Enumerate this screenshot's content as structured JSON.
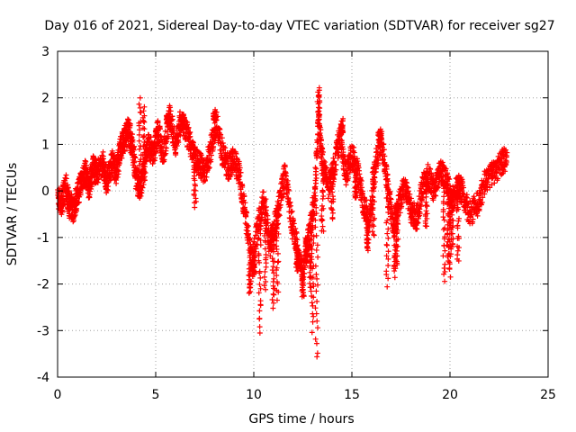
{
  "chart_data": {
    "type": "scatter",
    "title": "Day 016 of 2021, Sidereal Day-to-day VTEC variation (SDTVAR) for receiver sg27",
    "xlabel": "GPS time / hours",
    "ylabel": "SDTVAR / TECUs",
    "xlim": [
      0,
      25
    ],
    "ylim": [
      -4,
      3
    ],
    "xticks": [
      0,
      5,
      10,
      15,
      20,
      25
    ],
    "yticks": [
      -4,
      -3,
      -2,
      -1,
      0,
      1,
      2,
      3
    ],
    "xtick_labels": [
      "0",
      "5",
      "10",
      "15",
      "20",
      "25"
    ],
    "ytick_labels": [
      "-4",
      "-3",
      "-2",
      "-1",
      "0",
      "1",
      "2",
      "3"
    ],
    "grid": true,
    "marker": "+",
    "marker_color": "#ff0000",
    "trace": [
      [
        0.0,
        -0.1
      ],
      [
        0.2,
        -0.3
      ],
      [
        0.4,
        0.1
      ],
      [
        0.6,
        -0.3
      ],
      [
        0.8,
        -0.4
      ],
      [
        1.0,
        -0.1
      ],
      [
        1.2,
        0.2
      ],
      [
        1.4,
        0.4
      ],
      [
        1.6,
        0.1
      ],
      [
        1.8,
        0.5
      ],
      [
        2.0,
        0.4
      ],
      [
        2.3,
        0.6
      ],
      [
        2.5,
        0.2
      ],
      [
        2.8,
        0.6
      ],
      [
        3.0,
        0.4
      ],
      [
        3.2,
        0.9
      ],
      [
        3.4,
        1.1
      ],
      [
        3.6,
        1.3
      ],
      [
        3.8,
        1.0
      ],
      [
        4.0,
        0.3
      ],
      [
        4.2,
        0.0
      ],
      [
        4.4,
        0.4
      ],
      [
        4.6,
        1.0
      ],
      [
        4.9,
        0.8
      ],
      [
        5.1,
        1.3
      ],
      [
        5.4,
        0.8
      ],
      [
        5.7,
        1.6
      ],
      [
        6.0,
        1.0
      ],
      [
        6.3,
        1.5
      ],
      [
        6.6,
        1.2
      ],
      [
        6.9,
        0.8
      ],
      [
        7.2,
        0.6
      ],
      [
        7.5,
        0.4
      ],
      [
        7.8,
        0.9
      ],
      [
        8.1,
        1.5
      ],
      [
        8.4,
        0.8
      ],
      [
        8.7,
        0.5
      ],
      [
        9.0,
        0.7
      ],
      [
        9.3,
        0.3
      ],
      [
        9.6,
        -0.6
      ],
      [
        9.9,
        -1.5
      ],
      [
        10.2,
        -0.8
      ],
      [
        10.5,
        -0.2
      ],
      [
        10.8,
        -1.2
      ],
      [
        11.0,
        -0.9
      ],
      [
        11.3,
        -0.3
      ],
      [
        11.6,
        0.4
      ],
      [
        11.9,
        -0.6
      ],
      [
        12.2,
        -1.2
      ],
      [
        12.5,
        -1.8
      ],
      [
        12.8,
        -1.0
      ],
      [
        13.1,
        -0.2
      ],
      [
        13.3,
        1.5
      ],
      [
        13.5,
        0.6
      ],
      [
        13.8,
        0.1
      ],
      [
        14.1,
        0.5
      ],
      [
        14.4,
        1.2
      ],
      [
        14.7,
        0.3
      ],
      [
        15.0,
        0.8
      ],
      [
        15.3,
        0.4
      ],
      [
        15.6,
        -0.3
      ],
      [
        15.9,
        -0.7
      ],
      [
        16.2,
        0.6
      ],
      [
        16.5,
        1.1
      ],
      [
        16.8,
        0.2
      ],
      [
        17.1,
        -0.8
      ],
      [
        17.4,
        -0.3
      ],
      [
        17.7,
        0.1
      ],
      [
        18.0,
        -0.4
      ],
      [
        18.3,
        -0.6
      ],
      [
        18.6,
        0.1
      ],
      [
        18.9,
        0.3
      ],
      [
        19.2,
        0.0
      ],
      [
        19.5,
        0.5
      ],
      [
        19.8,
        0.2
      ],
      [
        20.1,
        -0.2
      ],
      [
        20.4,
        0.1
      ],
      [
        20.6,
        0.0
      ],
      [
        21.0,
        -0.5
      ],
      [
        21.4,
        -0.3
      ],
      [
        21.8,
        0.2
      ],
      [
        22.2,
        0.4
      ],
      [
        22.6,
        0.6
      ],
      [
        22.9,
        0.7
      ]
    ],
    "bursts": [
      [
        4.2,
        2.0
      ],
      [
        4.4,
        1.8
      ],
      [
        5.6,
        1.5
      ],
      [
        6.4,
        1.6
      ],
      [
        7.0,
        -0.3
      ],
      [
        8.0,
        1.7
      ],
      [
        9.8,
        -2.2
      ],
      [
        10.0,
        -1.8
      ],
      [
        10.3,
        -3.0
      ],
      [
        10.6,
        -2.1
      ],
      [
        11.0,
        -2.5
      ],
      [
        11.2,
        -2.3
      ],
      [
        12.2,
        -1.7
      ],
      [
        12.5,
        -2.3
      ],
      [
        12.7,
        -1.5
      ],
      [
        12.9,
        -2.2
      ],
      [
        13.0,
        -3.0
      ],
      [
        13.2,
        -3.6
      ],
      [
        13.3,
        2.2
      ],
      [
        13.5,
        -0.9
      ],
      [
        14.0,
        -0.6
      ],
      [
        14.5,
        1.5
      ],
      [
        15.2,
        -0.2
      ],
      [
        15.8,
        -1.3
      ],
      [
        16.1,
        -1.0
      ],
      [
        16.4,
        1.3
      ],
      [
        16.8,
        -2.0
      ],
      [
        17.3,
        -1.6
      ],
      [
        17.2,
        -1.8
      ],
      [
        18.8,
        -0.8
      ],
      [
        19.7,
        -1.9
      ],
      [
        19.9,
        -1.5
      ],
      [
        20.1,
        -1.3
      ],
      [
        20.4,
        -1.5
      ],
      [
        20.0,
        -1.8
      ]
    ]
  }
}
